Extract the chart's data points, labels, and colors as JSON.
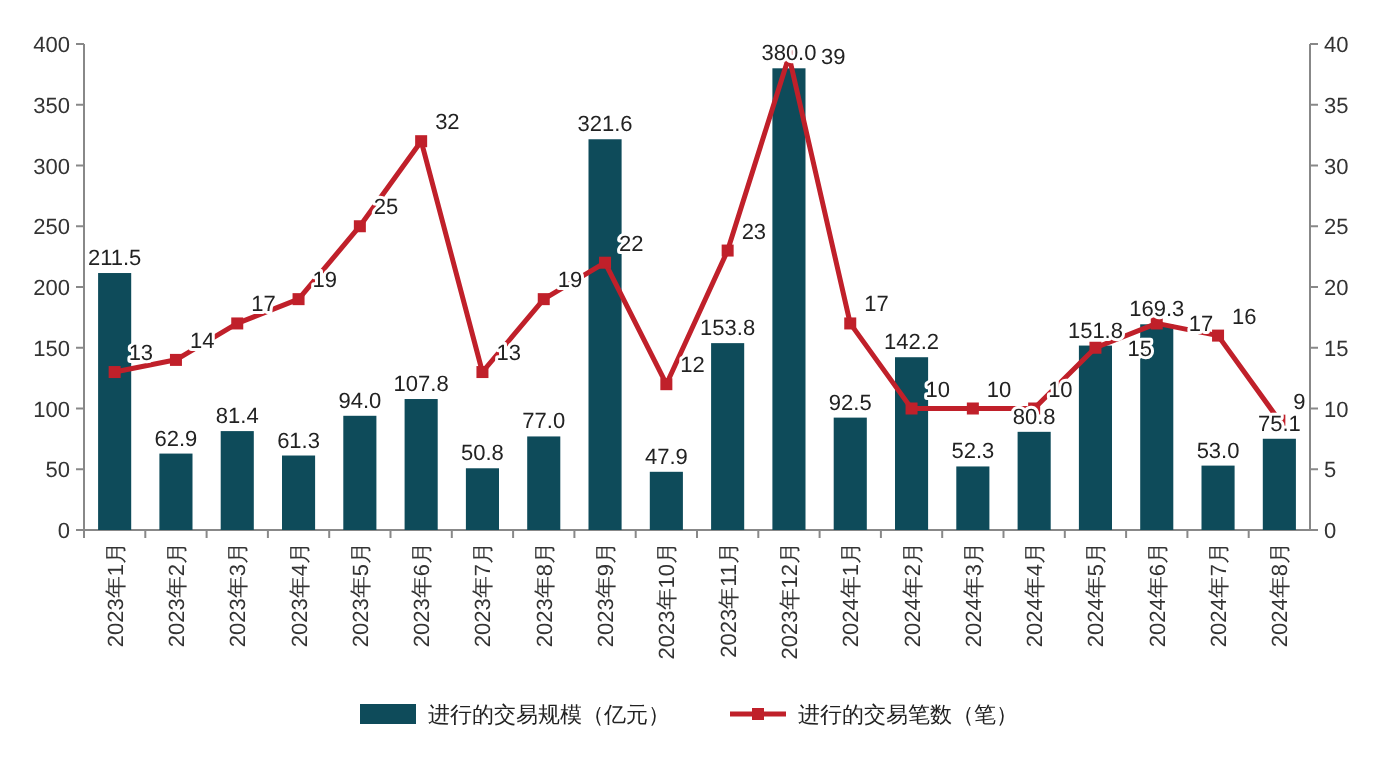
{
  "chart_data": {
    "type": "bar",
    "categories": [
      "2023年1月",
      "2023年2月",
      "2023年3月",
      "2023年4月",
      "2023年5月",
      "2023年6月",
      "2023年7月",
      "2023年8月",
      "2023年9月",
      "2023年10月",
      "2023年11月",
      "2023年12月",
      "2024年1月",
      "2024年2月",
      "2024年3月",
      "2024年4月",
      "2024年5月",
      "2024年6月",
      "2024年7月",
      "2024年8月"
    ],
    "series": [
      {
        "name": "进行的交易规模（亿元）",
        "color": "#0e4b5a",
        "values": [
          211.5,
          62.9,
          81.4,
          61.3,
          94.0,
          107.8,
          50.8,
          77.0,
          321.6,
          47.9,
          153.8,
          380.0,
          92.5,
          142.2,
          52.3,
          80.8,
          151.8,
          169.3,
          53.0,
          75.1
        ],
        "value_labels": [
          "211.5",
          "62.9",
          "81.4",
          "61.3",
          "94.0",
          "107.8",
          "50.8",
          "77.0",
          "321.6",
          "47.9",
          "153.8",
          "380.0",
          "92.5",
          "142.2",
          "52.3",
          "80.8",
          "151.8",
          "169.3",
          "53.0",
          "75.1"
        ]
      },
      {
        "name": "进行的交易笔数（笔）",
        "type": "line",
        "axis": "y2",
        "color": "#c0202a",
        "values": [
          13,
          14,
          17,
          19,
          25,
          32,
          13,
          19,
          22,
          12,
          23,
          39,
          17,
          10,
          10,
          10,
          15,
          17,
          16,
          9
        ]
      }
    ],
    "ylim": [
      0,
      400
    ],
    "yticks": [
      0,
      50,
      100,
      150,
      200,
      250,
      300,
      350,
      400
    ],
    "y2lim": [
      0,
      40
    ],
    "y2ticks": [
      0,
      5,
      10,
      15,
      20,
      25,
      30,
      35,
      40
    ],
    "marker": "square",
    "data_labels": true,
    "legend": "bottom",
    "grid": false
  }
}
